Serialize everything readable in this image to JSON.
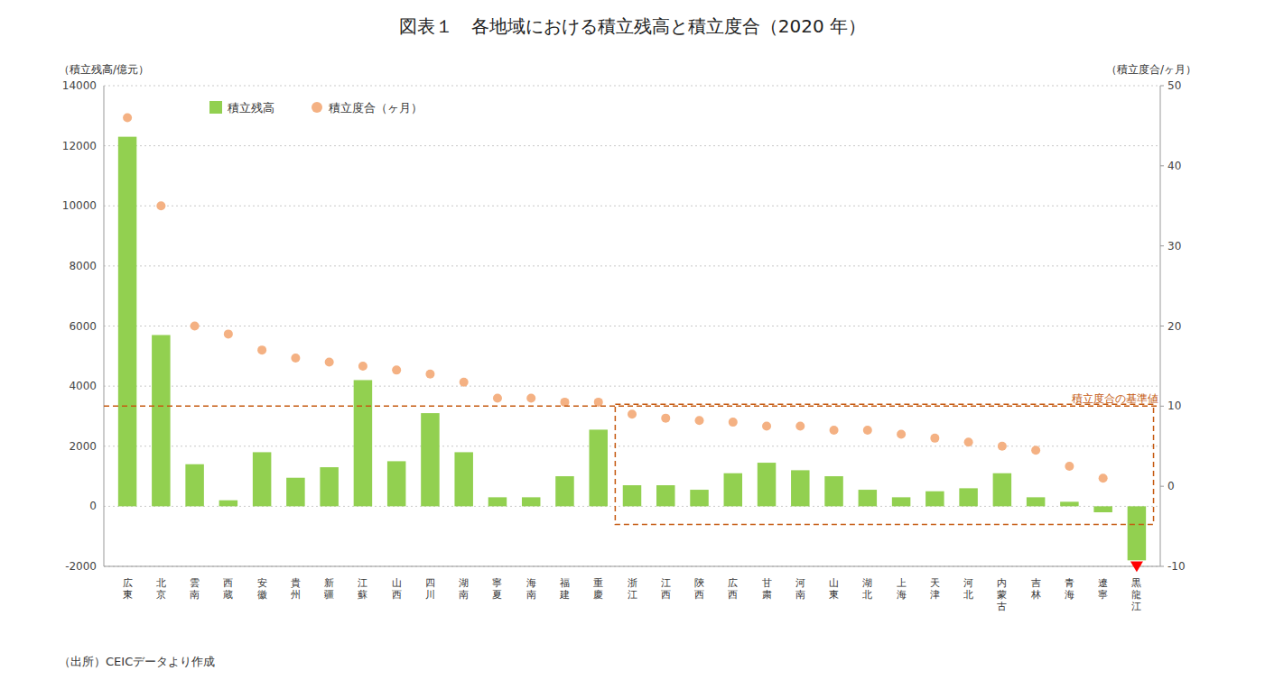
{
  "chart_data": {
    "type": "bar",
    "title": "図表１　各地域における積立残高と積立度合（2020 年）",
    "y_label": "（積立残高/億元）",
    "y2_label": "（積立度合/ヶ月）",
    "source": "（出所）CEICデータより作成",
    "categories": [
      "広\n東",
      "北\n京",
      "雲\n南",
      "西\n蔵",
      "安\n徽",
      "貴\n州",
      "新\n疆",
      "江\n蘇",
      "山\n西",
      "四\n川",
      "湖\n南",
      "寧\n夏",
      "海\n南",
      "福\n建",
      "重\n慶",
      "浙\n江",
      "江\n西",
      "陝\n西",
      "広\n西",
      "甘\n粛",
      "河\n南",
      "山\n東",
      "湖\n北",
      "上\n海",
      "天\n津",
      "河\n北",
      "内\n蒙\n古",
      "吉\n林",
      "青\n海",
      "遼\n寧",
      "黒\n龍\n江"
    ],
    "series": [
      {
        "name": "積立残高",
        "type": "bar",
        "color": "#92D050",
        "values": [
          12300,
          5700,
          1400,
          200,
          1800,
          950,
          1300,
          4200,
          1500,
          3100,
          1800,
          300,
          300,
          1000,
          2550,
          700,
          700,
          550,
          1100,
          1450,
          1200,
          1000,
          550,
          300,
          500,
          600,
          1100,
          300,
          150,
          -200,
          -1800
        ]
      },
      {
        "name": "積立度合（ヶ月）",
        "type": "scatter",
        "axis": "y2",
        "color": "#F4B183",
        "marker": "circle",
        "values": [
          46,
          35,
          20,
          19,
          17,
          16,
          15.5,
          15,
          14.5,
          14,
          13,
          11,
          11,
          10.5,
          10.5,
          9,
          8.5,
          8.2,
          8,
          7.5,
          7.5,
          7,
          7,
          6.5,
          6,
          5.5,
          5,
          4.5,
          2.5,
          1,
          -10
        ]
      }
    ],
    "annotations": [
      {
        "text": "積立度合の基準値",
        "y": 10,
        "axis": "y2",
        "color": "#C55A11",
        "line_style": "dashed"
      }
    ],
    "highlight": {
      "from": 15,
      "color": "#C55A11",
      "line_style": "dashed"
    },
    "flag": {
      "category": "黒\n龍\n江",
      "color": "red",
      "marker": "triangle-down"
    },
    "ylim": [
      -2000,
      14000
    ],
    "yticks": [
      -2000,
      0,
      2000,
      4000,
      6000,
      8000,
      10000,
      12000,
      14000
    ],
    "y2lim": [
      -10,
      50
    ],
    "y2ticks": [
      -10,
      0,
      10,
      20,
      30,
      40,
      50
    ],
    "grid": true,
    "legend": "upper left",
    "background_color": "#FFFFFF"
  }
}
